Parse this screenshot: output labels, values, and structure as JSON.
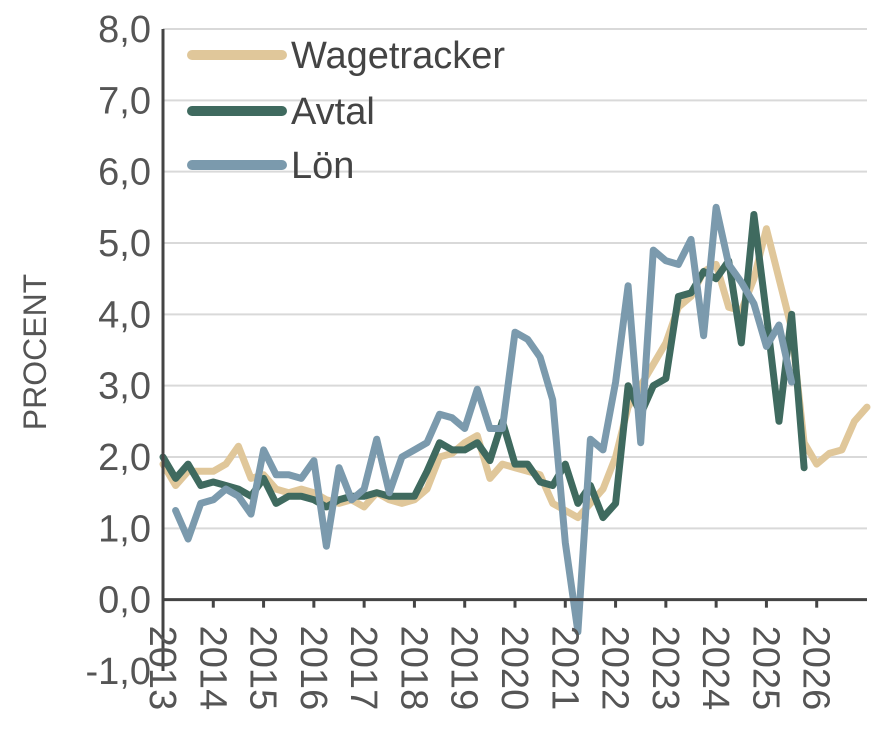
{
  "chart_data": {
    "type": "line",
    "ylabel": "PROCENT",
    "xlabel": "",
    "title": "",
    "ylim": [
      -1.0,
      8.0
    ],
    "xlim": [
      2013.0,
      2027.0
    ],
    "y_ticks": [
      -1.0,
      0.0,
      1.0,
      2.0,
      3.0,
      4.0,
      5.0,
      6.0,
      7.0,
      8.0
    ],
    "y_tick_labels": [
      "-1,0",
      "0,0",
      "1,0",
      "2,0",
      "3,0",
      "4,0",
      "5,0",
      "6,0",
      "7,0",
      "8,0"
    ],
    "x_tick_labels": [
      "2013",
      "2014",
      "2015",
      "2016",
      "2017",
      "2018",
      "2019",
      "2020",
      "2021",
      "2022",
      "2023",
      "2024",
      "2025",
      "2026"
    ],
    "legend_position": "top-left",
    "grid": true,
    "series": [
      {
        "name": "Wagetracker",
        "color": "#e0c79a",
        "points": [
          [
            2013.0,
            1.9
          ],
          [
            2013.25,
            1.6
          ],
          [
            2013.5,
            1.8
          ],
          [
            2013.75,
            1.8
          ],
          [
            2014.0,
            1.8
          ],
          [
            2014.25,
            1.9
          ],
          [
            2014.5,
            2.15
          ],
          [
            2014.75,
            1.7
          ],
          [
            2015.0,
            1.75
          ],
          [
            2015.25,
            1.55
          ],
          [
            2015.5,
            1.5
          ],
          [
            2015.75,
            1.55
          ],
          [
            2016.0,
            1.5
          ],
          [
            2016.25,
            1.4
          ],
          [
            2016.5,
            1.35
          ],
          [
            2016.75,
            1.4
          ],
          [
            2017.0,
            1.3
          ],
          [
            2017.25,
            1.5
          ],
          [
            2017.5,
            1.4
          ],
          [
            2017.75,
            1.35
          ],
          [
            2018.0,
            1.4
          ],
          [
            2018.25,
            1.55
          ],
          [
            2018.5,
            2.0
          ],
          [
            2018.75,
            2.05
          ],
          [
            2019.0,
            2.2
          ],
          [
            2019.25,
            2.3
          ],
          [
            2019.5,
            1.7
          ],
          [
            2019.75,
            1.9
          ],
          [
            2020.0,
            1.85
          ],
          [
            2020.25,
            1.8
          ],
          [
            2020.5,
            1.75
          ],
          [
            2020.75,
            1.35
          ],
          [
            2021.0,
            1.25
          ],
          [
            2021.25,
            1.15
          ],
          [
            2021.5,
            1.35
          ],
          [
            2021.75,
            1.55
          ],
          [
            2022.0,
            2.0
          ],
          [
            2022.25,
            2.7
          ],
          [
            2022.5,
            3.0
          ],
          [
            2022.75,
            3.3
          ],
          [
            2023.0,
            3.6
          ],
          [
            2023.25,
            4.1
          ],
          [
            2023.5,
            4.25
          ],
          [
            2023.75,
            4.6
          ],
          [
            2024.0,
            4.7
          ],
          [
            2024.25,
            4.1
          ],
          [
            2024.5,
            4.05
          ],
          [
            2024.75,
            4.5
          ],
          [
            2025.0,
            5.2
          ],
          [
            2025.25,
            4.5
          ],
          [
            2025.5,
            3.8
          ],
          [
            2025.75,
            2.2
          ],
          [
            2026.0,
            1.9
          ],
          [
            2026.25,
            2.05
          ],
          [
            2026.5,
            2.1
          ],
          [
            2026.75,
            2.5
          ],
          [
            2027.0,
            2.7
          ]
        ]
      },
      {
        "name": "Avtal",
        "color": "#3f6a5f",
        "points": [
          [
            2013.0,
            2.0
          ],
          [
            2013.25,
            1.7
          ],
          [
            2013.5,
            1.9
          ],
          [
            2013.75,
            1.6
          ],
          [
            2014.0,
            1.65
          ],
          [
            2014.25,
            1.6
          ],
          [
            2014.5,
            1.55
          ],
          [
            2014.75,
            1.45
          ],
          [
            2015.0,
            1.7
          ],
          [
            2015.25,
            1.35
          ],
          [
            2015.5,
            1.45
          ],
          [
            2015.75,
            1.45
          ],
          [
            2016.0,
            1.4
          ],
          [
            2016.25,
            1.3
          ],
          [
            2016.5,
            1.4
          ],
          [
            2016.75,
            1.45
          ],
          [
            2017.0,
            1.45
          ],
          [
            2017.25,
            1.5
          ],
          [
            2017.5,
            1.45
          ],
          [
            2017.75,
            1.45
          ],
          [
            2018.0,
            1.45
          ],
          [
            2018.25,
            1.8
          ],
          [
            2018.5,
            2.2
          ],
          [
            2018.75,
            2.1
          ],
          [
            2019.0,
            2.1
          ],
          [
            2019.25,
            2.2
          ],
          [
            2019.5,
            1.95
          ],
          [
            2019.75,
            2.5
          ],
          [
            2020.0,
            1.9
          ],
          [
            2020.25,
            1.9
          ],
          [
            2020.5,
            1.65
          ],
          [
            2020.75,
            1.6
          ],
          [
            2021.0,
            1.9
          ],
          [
            2021.25,
            1.35
          ],
          [
            2021.5,
            1.6
          ],
          [
            2021.75,
            1.15
          ],
          [
            2022.0,
            1.35
          ],
          [
            2022.25,
            3.0
          ],
          [
            2022.5,
            2.6
          ],
          [
            2022.75,
            3.0
          ],
          [
            2023.0,
            3.1
          ],
          [
            2023.25,
            4.25
          ],
          [
            2023.5,
            4.3
          ],
          [
            2023.75,
            4.6
          ],
          [
            2024.0,
            4.5
          ],
          [
            2024.25,
            4.75
          ],
          [
            2024.5,
            3.6
          ],
          [
            2024.75,
            5.4
          ],
          [
            2025.0,
            4.0
          ],
          [
            2025.25,
            2.5
          ],
          [
            2025.5,
            4.0
          ],
          [
            2025.75,
            1.85
          ]
        ]
      },
      {
        "name": "Lön",
        "color": "#7b9aad",
        "points": [
          [
            2013.25,
            1.25
          ],
          [
            2013.5,
            0.85
          ],
          [
            2013.75,
            1.35
          ],
          [
            2014.0,
            1.4
          ],
          [
            2014.25,
            1.55
          ],
          [
            2014.5,
            1.45
          ],
          [
            2014.75,
            1.2
          ],
          [
            2015.0,
            2.1
          ],
          [
            2015.25,
            1.75
          ],
          [
            2015.5,
            1.75
          ],
          [
            2015.75,
            1.7
          ],
          [
            2016.0,
            1.95
          ],
          [
            2016.25,
            0.75
          ],
          [
            2016.5,
            1.85
          ],
          [
            2016.75,
            1.4
          ],
          [
            2017.0,
            1.55
          ],
          [
            2017.25,
            2.25
          ],
          [
            2017.5,
            1.5
          ],
          [
            2017.75,
            2.0
          ],
          [
            2018.0,
            2.1
          ],
          [
            2018.25,
            2.2
          ],
          [
            2018.5,
            2.6
          ],
          [
            2018.75,
            2.55
          ],
          [
            2019.0,
            2.4
          ],
          [
            2019.25,
            2.95
          ],
          [
            2019.5,
            2.4
          ],
          [
            2019.75,
            2.4
          ],
          [
            2020.0,
            3.75
          ],
          [
            2020.25,
            3.65
          ],
          [
            2020.5,
            3.4
          ],
          [
            2020.75,
            2.8
          ],
          [
            2021.0,
            0.8
          ],
          [
            2021.25,
            -0.45
          ],
          [
            2021.5,
            2.25
          ],
          [
            2021.75,
            2.1
          ],
          [
            2022.0,
            3.05
          ],
          [
            2022.25,
            4.4
          ],
          [
            2022.5,
            2.2
          ],
          [
            2022.75,
            4.9
          ],
          [
            2023.0,
            4.75
          ],
          [
            2023.25,
            4.7
          ],
          [
            2023.5,
            5.05
          ],
          [
            2023.75,
            3.7
          ],
          [
            2024.0,
            5.5
          ],
          [
            2024.25,
            4.7
          ],
          [
            2024.5,
            4.45
          ],
          [
            2024.75,
            4.15
          ],
          [
            2025.0,
            3.55
          ],
          [
            2025.25,
            3.85
          ],
          [
            2025.5,
            3.05
          ]
        ]
      }
    ]
  }
}
